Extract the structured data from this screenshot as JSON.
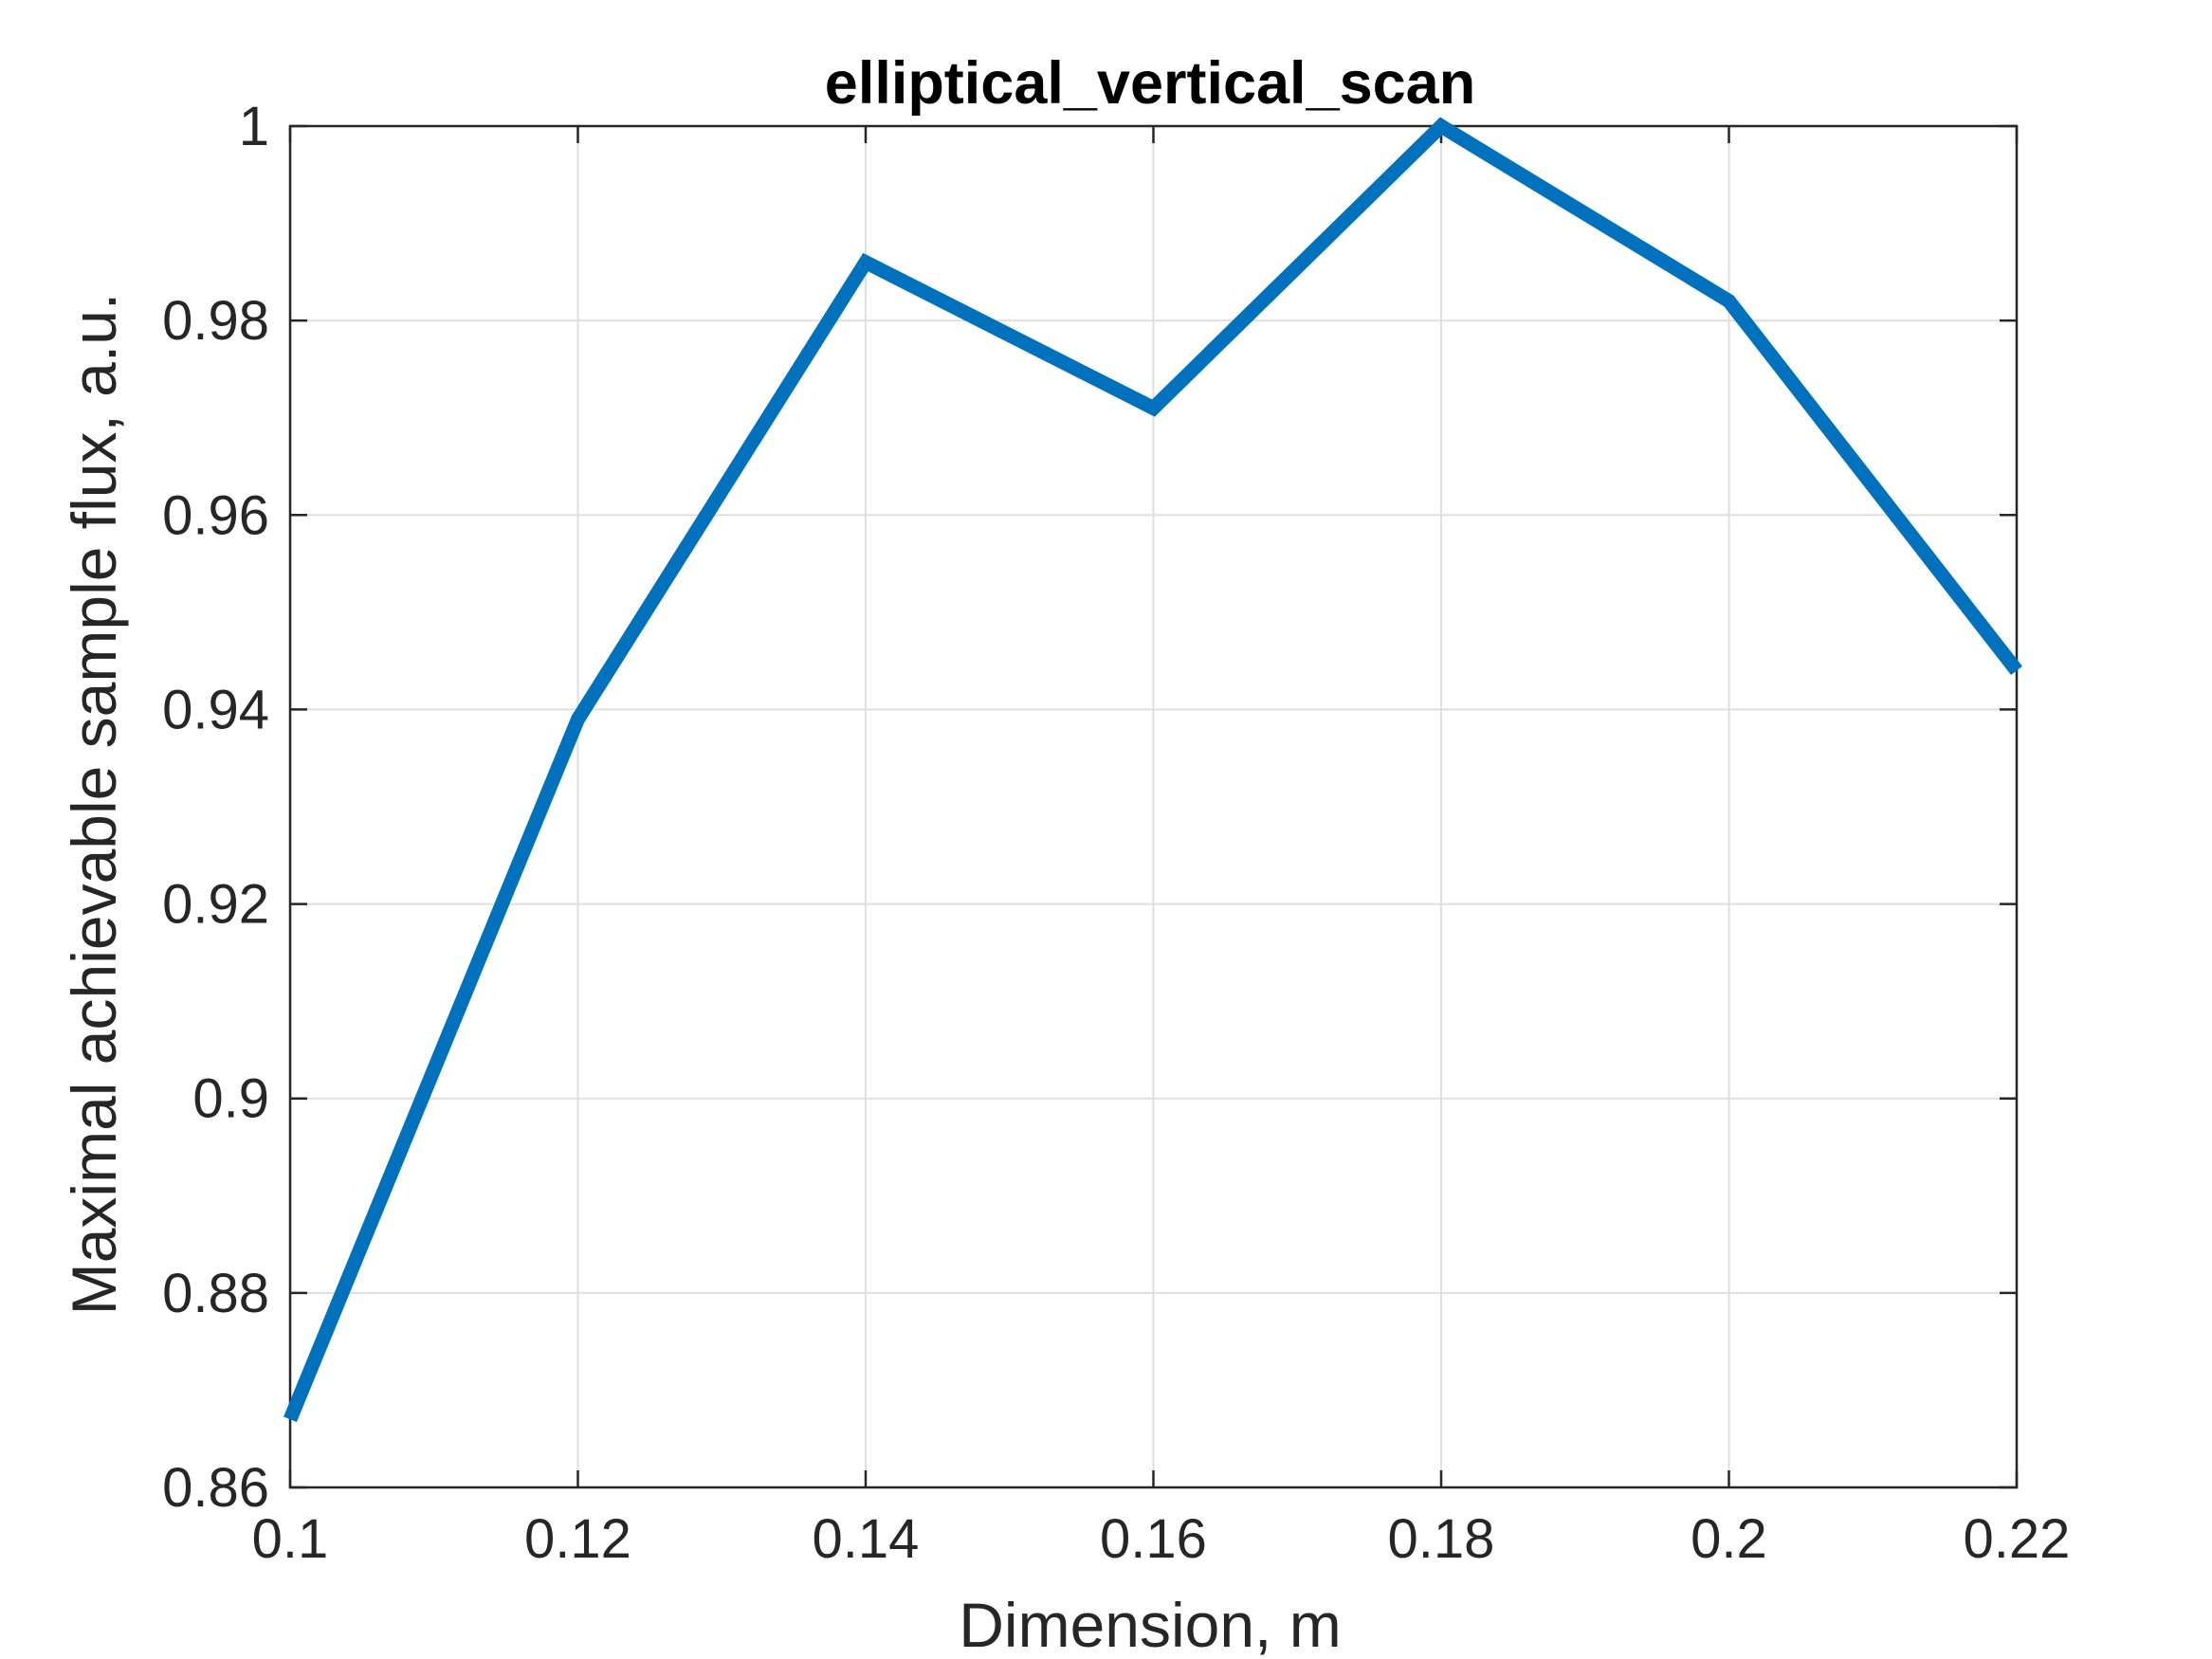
{
  "chart_data": {
    "type": "line",
    "title": "elliptical_vertical_scan",
    "xlabel": "Dimension, m",
    "ylabel": "Maximal achievable sample flux, a.u.",
    "xlim": [
      0.1,
      0.22
    ],
    "ylim": [
      0.86,
      1.0
    ],
    "xticks": [
      "0.1",
      "0.12",
      "0.14",
      "0.16",
      "0.18",
      "0.2",
      "0.22"
    ],
    "yticks": [
      "0.86",
      "0.88",
      "0.9",
      "0.92",
      "0.94",
      "0.96",
      "0.98",
      "1"
    ],
    "grid": true,
    "series": [
      {
        "color": "#0072BD",
        "x": [
          0.1,
          0.12,
          0.14,
          0.16,
          0.18,
          0.2,
          0.22
        ],
        "y": [
          0.867,
          0.939,
          0.986,
          0.971,
          1.0,
          0.982,
          0.944
        ]
      }
    ]
  }
}
